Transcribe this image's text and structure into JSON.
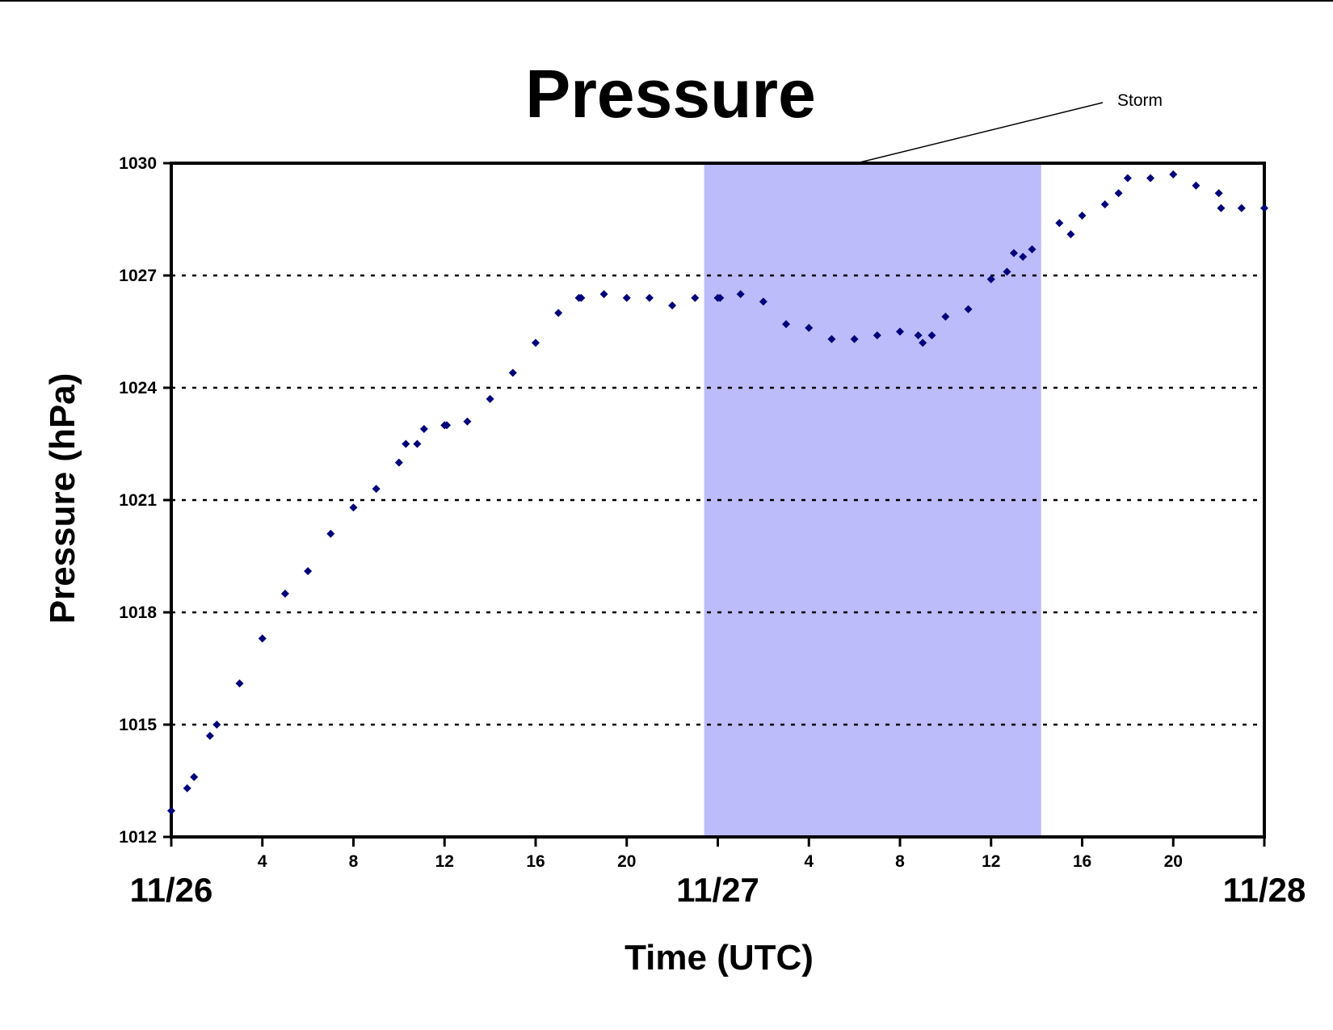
{
  "chart_data": {
    "type": "scatter",
    "title": "Pressure",
    "xlabel": "Time (UTC)",
    "ylabel": "Pressure (hPa)",
    "x_unit": "hours since 11/26 00 UTC",
    "xlim": [
      0,
      48
    ],
    "ylim": [
      1012,
      1030
    ],
    "yticks": [
      "1012",
      "1015",
      "1018",
      "1021",
      "1024",
      "1027",
      "1030"
    ],
    "xtick_hours": [
      "4",
      "8",
      "12",
      "16",
      "20",
      "4",
      "8",
      "12",
      "16",
      "20"
    ],
    "date_labels": [
      "11/26",
      "11/27",
      "11/28"
    ],
    "grid": "horizontal dotted at each y tick",
    "marker_color": "#00007a",
    "highlight": {
      "label": "Storm",
      "x_start": 23.4,
      "x_end": 38.2,
      "color": "#bcbcfb"
    },
    "series": [
      {
        "x": [
          0,
          0.7,
          1,
          1.7,
          2,
          3,
          4,
          5,
          6,
          7,
          8,
          9,
          10,
          10.3,
          10.8,
          11.1,
          12,
          12.1,
          13,
          14,
          15,
          16,
          17,
          17.9,
          18,
          19,
          20,
          21,
          22,
          23,
          24,
          24.1,
          25,
          26,
          27,
          28,
          29,
          30,
          31,
          32,
          32.8,
          33,
          33.4,
          34,
          35,
          36,
          36,
          36.7,
          37,
          37.4,
          37.8,
          39,
          39.5,
          40,
          41,
          41.6,
          42,
          43,
          44,
          45,
          46,
          46.1,
          47,
          48
        ],
        "y": [
          1012.7,
          1013.3,
          1013.6,
          1014.7,
          1015,
          1016.1,
          1017.3,
          1018.5,
          1019.1,
          1020.1,
          1020.8,
          1021.3,
          1022,
          1022.5,
          1022.5,
          1022.9,
          1023,
          1023,
          1023.1,
          1023.7,
          1024.4,
          1025.2,
          1026,
          1026.4,
          1026.4,
          1026.5,
          1026.4,
          1026.4,
          1026.2,
          1026.4,
          1026.4,
          1026.4,
          1026.5,
          1026.3,
          1025.7,
          1025.6,
          1025.3,
          1025.3,
          1025.4,
          1025.5,
          1025.4,
          1025.2,
          1025.4,
          1025.9,
          1026.1,
          1026.9,
          1026.9,
          1027.1,
          1027.6,
          1027.5,
          1027.7,
          1028.4,
          1028.1,
          1028.6,
          1028.9,
          1029.2,
          1029.6,
          1029.6,
          1029.7,
          1029.4,
          1029.2,
          1028.8,
          1028.8,
          1028.8
        ]
      }
    ]
  }
}
